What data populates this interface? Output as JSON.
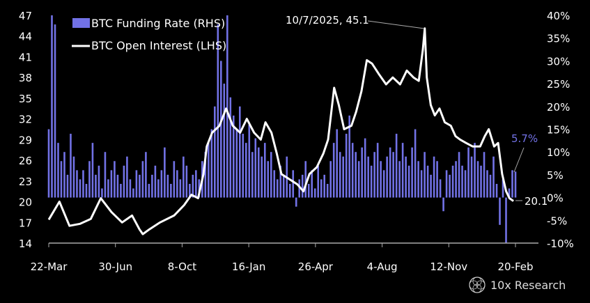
{
  "chart_data": {
    "type": "bar+line",
    "title": "",
    "x_start_label": "22-Mar",
    "x_total_days": 700,
    "x_ticks": [
      {
        "label": "22-Mar",
        "day": 0
      },
      {
        "label": "30-Jun",
        "day": 100
      },
      {
        "label": "8-Oct",
        "day": 200
      },
      {
        "label": "16-Jan",
        "day": 300
      },
      {
        "label": "26-Apr",
        "day": 400
      },
      {
        "label": "4-Aug",
        "day": 500
      },
      {
        "label": "12-Nov",
        "day": 600
      },
      {
        "label": "20-Feb",
        "day": 700
      }
    ],
    "y_left": {
      "label": "BTC Open Interest",
      "lim": [
        14,
        47
      ],
      "ticks": [
        14,
        17,
        20,
        23,
        26,
        29,
        32,
        35,
        38,
        41,
        44,
        47
      ]
    },
    "y_right": {
      "label": "BTC Funding Rate",
      "lim": [
        -10,
        40
      ],
      "ticks": [
        "-10%",
        "-5%",
        "0%",
        "5%",
        "10%",
        "15%",
        "20%",
        "25%",
        "30%",
        "35%",
        "40%"
      ],
      "tick_values": [
        -10,
        -5,
        0,
        5,
        10,
        15,
        20,
        25,
        30,
        35,
        40
      ]
    },
    "legend": {
      "placement": "top-left",
      "funding": "BTC Funding Rate (RHS)",
      "oi": "BTC Open Interest (LHS)"
    },
    "colors": {
      "funding": "#7272e6",
      "oi": "#ffffff",
      "axis": "#aaaaaa"
    },
    "series": [
      {
        "name": "BTC Funding Rate (RHS)",
        "axis": "right",
        "type": "bar",
        "unit": "%",
        "values": [
          15,
          40,
          38,
          12,
          8,
          10,
          5,
          14,
          9,
          6,
          4,
          6,
          3,
          8,
          12,
          5,
          7,
          2,
          10,
          4,
          6,
          8,
          5,
          3,
          7,
          9,
          4,
          2,
          6,
          5,
          8,
          10,
          3,
          5,
          7,
          4,
          6,
          11,
          5,
          3,
          8,
          6,
          4,
          9,
          7,
          3,
          5,
          6,
          4,
          8,
          10,
          12,
          15,
          20,
          38,
          30,
          25,
          40,
          22,
          18,
          15,
          20,
          14,
          12,
          16,
          10,
          13,
          11,
          9,
          12,
          8,
          10,
          6,
          4,
          7,
          5,
          9,
          3,
          6,
          -2,
          4,
          5,
          8,
          3,
          6,
          2,
          7,
          4,
          5,
          3,
          8,
          12,
          15,
          10,
          9,
          14,
          18,
          12,
          10,
          8,
          11,
          13,
          9,
          7,
          10,
          12,
          8,
          6,
          9,
          11,
          10,
          14,
          8,
          12,
          9,
          7,
          11,
          15,
          8,
          6,
          10,
          7,
          5,
          9,
          8,
          4,
          -3,
          6,
          5,
          7,
          8,
          10,
          7,
          6,
          11,
          9,
          12,
          8,
          7,
          10,
          6,
          5,
          9,
          3,
          -6,
          4,
          -10,
          2,
          6,
          5.7
        ]
      },
      {
        "name": "BTC Open Interest (LHS)",
        "axis": "left",
        "type": "line",
        "points": [
          [
            0,
            17.4
          ],
          [
            16,
            20
          ],
          [
            31,
            16.5
          ],
          [
            47,
            16.8
          ],
          [
            63,
            17.5
          ],
          [
            78,
            20.5
          ],
          [
            94,
            18.5
          ],
          [
            110,
            17
          ],
          [
            125,
            18
          ],
          [
            136,
            16
          ],
          [
            141,
            15.3
          ],
          [
            151,
            16
          ],
          [
            167,
            17
          ],
          [
            188,
            18
          ],
          [
            203,
            19.5
          ],
          [
            214,
            21
          ],
          [
            224,
            20.5
          ],
          [
            232,
            24
          ],
          [
            237,
            28
          ],
          [
            245,
            30
          ],
          [
            256,
            31
          ],
          [
            266,
            33.5
          ],
          [
            276,
            31
          ],
          [
            287,
            30
          ],
          [
            297,
            32
          ],
          [
            308,
            30
          ],
          [
            318,
            29
          ],
          [
            325,
            31.5
          ],
          [
            334,
            30
          ],
          [
            342,
            27
          ],
          [
            349,
            24
          ],
          [
            357,
            23.5
          ],
          [
            365,
            23
          ],
          [
            373,
            22.5
          ],
          [
            382,
            21.5
          ],
          [
            391,
            24
          ],
          [
            402,
            25
          ],
          [
            412,
            27
          ],
          [
            419,
            29
          ],
          [
            428,
            36.5
          ],
          [
            435,
            34
          ],
          [
            443,
            30.5
          ],
          [
            454,
            31
          ],
          [
            461,
            33
          ],
          [
            469,
            36
          ],
          [
            477,
            40.5
          ],
          [
            485,
            40
          ],
          [
            495,
            38.5
          ],
          [
            506,
            37
          ],
          [
            516,
            38
          ],
          [
            527,
            37
          ],
          [
            537,
            39
          ],
          [
            547,
            38
          ],
          [
            555,
            37.5
          ],
          [
            561,
            42
          ],
          [
            564,
            45.1
          ],
          [
            567,
            38
          ],
          [
            573,
            34
          ],
          [
            579,
            32.5
          ],
          [
            586,
            33.5
          ],
          [
            594,
            31.5
          ],
          [
            603,
            31
          ],
          [
            610,
            29.5
          ],
          [
            617,
            29
          ],
          [
            626,
            28.5
          ],
          [
            636,
            28
          ],
          [
            647,
            28
          ],
          [
            654,
            29.5
          ],
          [
            660,
            30.5
          ],
          [
            668,
            28
          ],
          [
            674,
            28.5
          ],
          [
            680,
            24
          ],
          [
            686,
            21.5
          ],
          [
            691,
            20.5
          ],
          [
            697,
            20.1
          ]
        ]
      }
    ],
    "annotations": {
      "peak": {
        "text": "10/7/2025, 45.1",
        "day": 564,
        "value": 45.1
      },
      "last_oi": {
        "text": "20.1",
        "day": 697,
        "value": 20.1
      },
      "last_funding": {
        "text": "5.7%",
        "day": 700,
        "value": 5.7
      }
    }
  },
  "branding": {
    "logo_text": "10x Research"
  }
}
